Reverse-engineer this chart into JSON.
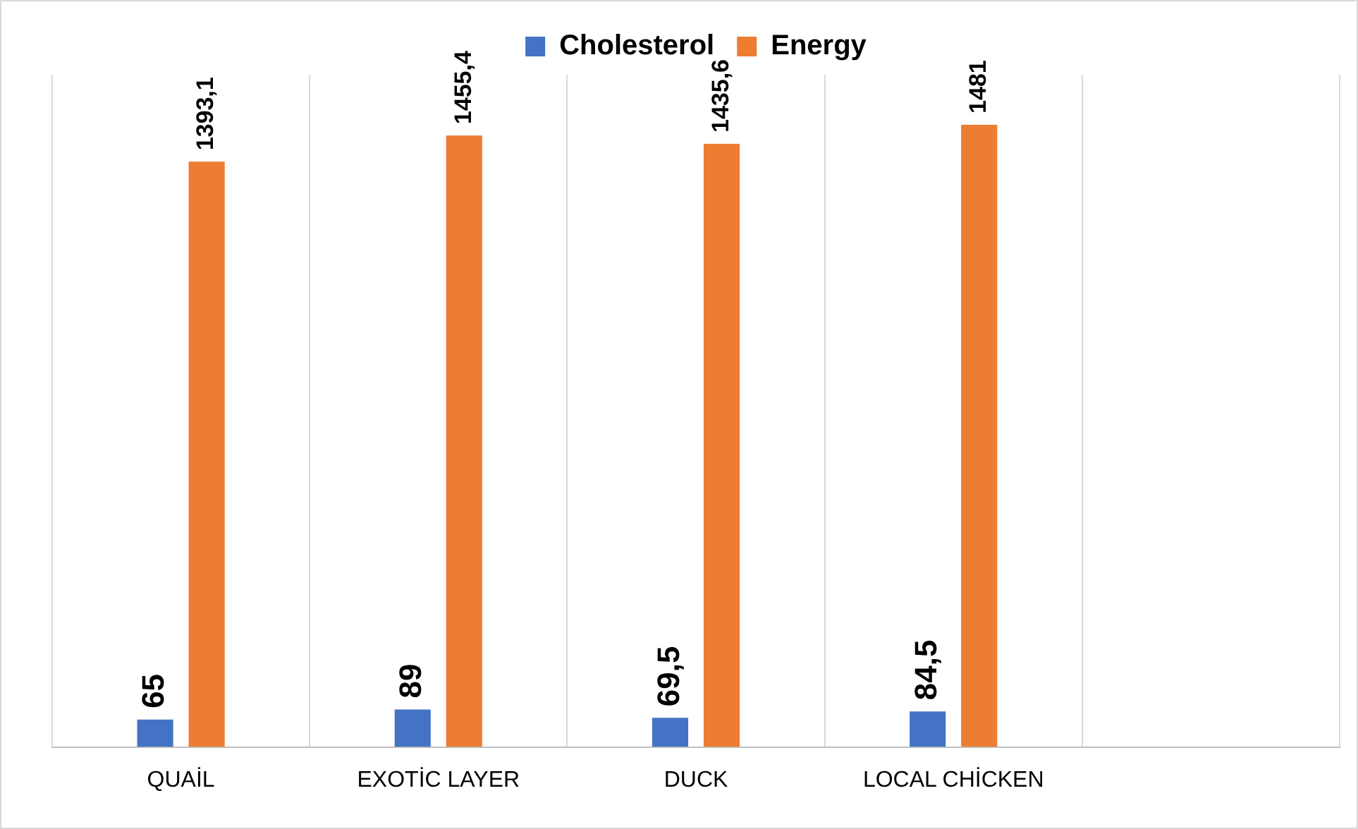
{
  "chart_data": {
    "type": "bar",
    "categories": [
      "QUAİL",
      "EXOTİC LAYER",
      "DUCK",
      "LOCAL CHİCKEN",
      null
    ],
    "series": [
      {
        "name": "Cholesterol",
        "color": "#4472c4",
        "values": [
          65,
          89,
          69.5,
          84.5,
          null
        ],
        "value_labels": [
          "65",
          "89",
          "69,5",
          "84,5",
          null
        ]
      },
      {
        "name": "Energy",
        "color": "#ed7d31",
        "values": [
          1393.1,
          1455.4,
          1435.6,
          1481,
          null
        ],
        "value_labels": [
          "1393,1",
          "1455,4",
          "1435,6",
          "1481",
          null
        ]
      }
    ],
    "grid": "x",
    "legend": "top",
    "tick_labels": "x"
  }
}
